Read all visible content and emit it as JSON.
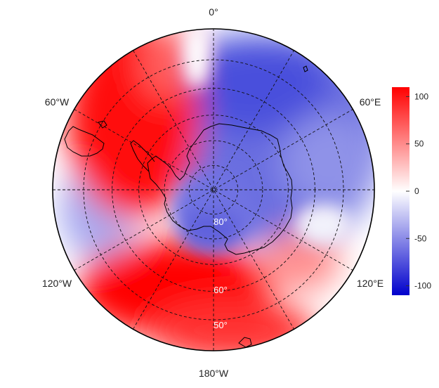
{
  "map": {
    "projection": "south-polar-stereographic",
    "longitude_labels": [
      {
        "text": "0°",
        "lon": 0
      },
      {
        "text": "60°E",
        "lon": 60
      },
      {
        "text": "120°E",
        "lon": 120
      },
      {
        "text": "180°W",
        "lon": 180
      },
      {
        "text": "120°W",
        "lon": -120
      },
      {
        "text": "60°W",
        "lon": -60
      }
    ],
    "latitude_labels": [
      {
        "text": "80°",
        "lat": -80
      },
      {
        "text": "60°",
        "lat": -60
      },
      {
        "text": "50°",
        "lat": -50
      }
    ],
    "graticule_latitudes": [
      -80,
      -70,
      -60,
      -50,
      -40
    ],
    "graticule_longitudes": [
      0,
      30,
      60,
      90,
      120,
      150
    ],
    "outer_latitude": -30
  },
  "colorbar": {
    "ticks": [
      "100",
      "50",
      "0",
      "-50",
      "-100"
    ],
    "tick_values": [
      100,
      50,
      0,
      -50,
      -100
    ],
    "range": [
      -110,
      110
    ],
    "colors": {
      "low": "#0000cc",
      "mid": "#ffffff",
      "high": "#ff0000"
    }
  }
}
